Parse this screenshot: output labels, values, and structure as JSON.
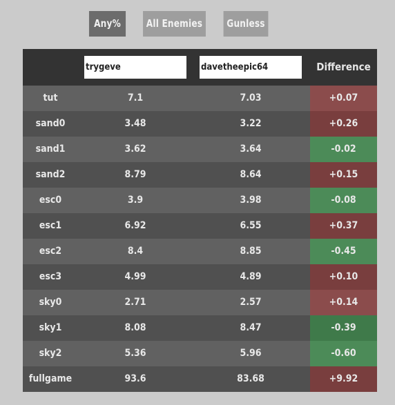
{
  "tabs": [
    {
      "label": "Any%",
      "active": true
    },
    {
      "label": "All Enemies",
      "active": false
    },
    {
      "label": "Gunless",
      "active": false
    }
  ],
  "table": {
    "player1": "trygeve",
    "player2": "davetheepic64",
    "difference_header": "Difference",
    "rows": [
      {
        "split": "tut",
        "p1": "7.1",
        "p2": "7.03",
        "diff": "+0.07",
        "sign": "pos"
      },
      {
        "split": "sand0",
        "p1": "3.48",
        "p2": "3.22",
        "diff": "+0.26",
        "sign": "pos"
      },
      {
        "split": "sand1",
        "p1": "3.62",
        "p2": "3.64",
        "diff": "-0.02",
        "sign": "neg"
      },
      {
        "split": "sand2",
        "p1": "8.79",
        "p2": "8.64",
        "diff": "+0.15",
        "sign": "pos"
      },
      {
        "split": "esc0",
        "p1": "3.9",
        "p2": "3.98",
        "diff": "-0.08",
        "sign": "neg"
      },
      {
        "split": "esc1",
        "p1": "6.92",
        "p2": "6.55",
        "diff": "+0.37",
        "sign": "pos"
      },
      {
        "split": "esc2",
        "p1": "8.4",
        "p2": "8.85",
        "diff": "-0.45",
        "sign": "neg"
      },
      {
        "split": "esc3",
        "p1": "4.99",
        "p2": "4.89",
        "diff": "+0.10",
        "sign": "pos"
      },
      {
        "split": "sky0",
        "p1": "2.71",
        "p2": "2.57",
        "diff": "+0.14",
        "sign": "pos"
      },
      {
        "split": "sky1",
        "p1": "8.08",
        "p2": "8.47",
        "diff": "-0.39",
        "sign": "neg"
      },
      {
        "split": "sky2",
        "p1": "5.36",
        "p2": "5.96",
        "diff": "-0.60",
        "sign": "neg"
      },
      {
        "split": "fullgame",
        "p1": "93.6",
        "p2": "83.68",
        "diff": "+9.92",
        "sign": "pos"
      }
    ]
  },
  "colors": {
    "background": "#cbcbcb",
    "header": "#333333",
    "row_light": "#616161",
    "row_dark": "#505050",
    "positive": "#8b4c4c",
    "negative": "#4c8b58",
    "tab_active": "#6c6c6c",
    "tab_inactive": "#9e9e9e"
  }
}
